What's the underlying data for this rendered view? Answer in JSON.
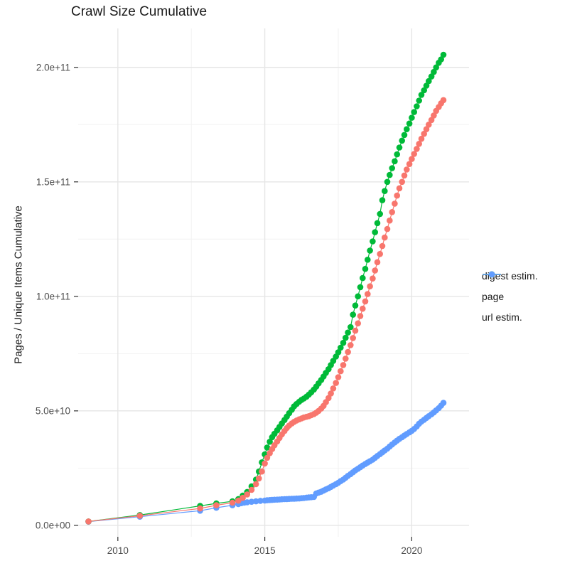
{
  "title": "Crawl Size Cumulative",
  "colors": {
    "digest": "#F8766D",
    "page": "#00BA38",
    "url": "#619CFF",
    "grid_major": "#E6E6E6",
    "grid_minor": "#F2F2F2",
    "tick_mark": "#333333",
    "axis_text": "#4D4D4D",
    "title_text": "#1A1A1A"
  },
  "legend": {
    "items": [
      {
        "label": "digest estim.",
        "color": "#F8766D"
      },
      {
        "label": "page",
        "color": "#00BA38"
      },
      {
        "label": "url estim.",
        "color": "#619CFF"
      }
    ]
  },
  "chart_data": {
    "type": "scatter",
    "title": "Crawl Size Cumulative",
    "xlabel": "",
    "ylabel": "Pages / Unique Items Cumulative",
    "grid": true,
    "legend_position": "right",
    "xlim": [
      2008.65,
      2021.95
    ],
    "y_scale": 1000000000.0,
    "ylim_scaled": [
      -5,
      217
    ],
    "x_major_ticks": [
      2010,
      2015,
      2020
    ],
    "x_tick_labels": [
      "2010",
      "2015",
      "2020"
    ],
    "x_minor_ticks": [
      2012.5,
      2017.5
    ],
    "y_major_ticks_scaled": [
      0,
      50,
      100,
      150,
      200
    ],
    "y_tick_labels": [
      "0.0e+00",
      "5.0e+10",
      "1.0e+11",
      "1.5e+11",
      "2.0e+11"
    ],
    "y_minor_ticks_scaled": [
      25,
      75,
      125,
      175
    ],
    "series": [
      {
        "name": "url estim.",
        "color": "#619CFF",
        "points": [
          [
            2009.0,
            1.6
          ],
          [
            2010.75,
            3.8
          ],
          [
            2012.8,
            6.4
          ],
          [
            2013.35,
            7.7
          ],
          [
            2013.9,
            8.8
          ],
          [
            2014.1,
            9.3
          ],
          [
            2014.2,
            9.7
          ],
          [
            2014.3,
            9.9
          ],
          [
            2014.4,
            10.1
          ],
          [
            2014.55,
            10.3
          ],
          [
            2014.7,
            10.5
          ],
          [
            2014.85,
            10.7
          ],
          [
            2015.0,
            10.85
          ],
          [
            2015.08,
            10.95
          ],
          [
            2015.17,
            11.05
          ],
          [
            2015.25,
            11.1
          ],
          [
            2015.33,
            11.2
          ],
          [
            2015.42,
            11.25
          ],
          [
            2015.5,
            11.3
          ],
          [
            2015.58,
            11.4
          ],
          [
            2015.67,
            11.45
          ],
          [
            2015.75,
            11.5
          ],
          [
            2015.83,
            11.55
          ],
          [
            2015.92,
            11.6
          ],
          [
            2016.0,
            11.65
          ],
          [
            2016.08,
            11.7
          ],
          [
            2016.17,
            11.75
          ],
          [
            2016.25,
            11.85
          ],
          [
            2016.33,
            11.95
          ],
          [
            2016.42,
            12.1
          ],
          [
            2016.5,
            12.2
          ],
          [
            2016.58,
            12.3
          ],
          [
            2016.67,
            12.4
          ],
          [
            2016.75,
            13.9
          ],
          [
            2016.83,
            14.3
          ],
          [
            2016.92,
            14.7
          ],
          [
            2017.0,
            15.2
          ],
          [
            2017.08,
            15.7
          ],
          [
            2017.17,
            16.2
          ],
          [
            2017.25,
            16.8
          ],
          [
            2017.33,
            17.4
          ],
          [
            2017.42,
            18.0
          ],
          [
            2017.5,
            18.6
          ],
          [
            2017.58,
            19.3
          ],
          [
            2017.67,
            20.0
          ],
          [
            2017.75,
            20.8
          ],
          [
            2017.83,
            21.6
          ],
          [
            2017.92,
            22.4
          ],
          [
            2018.0,
            23.2
          ],
          [
            2018.08,
            24.0
          ],
          [
            2018.17,
            24.7
          ],
          [
            2018.25,
            25.4
          ],
          [
            2018.33,
            26.1
          ],
          [
            2018.42,
            26.8
          ],
          [
            2018.5,
            27.4
          ],
          [
            2018.58,
            28.0
          ],
          [
            2018.67,
            28.7
          ],
          [
            2018.75,
            29.5
          ],
          [
            2018.83,
            30.3
          ],
          [
            2018.92,
            31.1
          ],
          [
            2019.0,
            31.9
          ],
          [
            2019.08,
            32.7
          ],
          [
            2019.17,
            33.5
          ],
          [
            2019.25,
            34.4
          ],
          [
            2019.33,
            35.3
          ],
          [
            2019.42,
            36.2
          ],
          [
            2019.5,
            37.0
          ],
          [
            2019.58,
            37.8
          ],
          [
            2019.67,
            38.5
          ],
          [
            2019.75,
            39.2
          ],
          [
            2019.83,
            39.9
          ],
          [
            2019.92,
            40.6
          ],
          [
            2020.0,
            41.3
          ],
          [
            2020.08,
            42.1
          ],
          [
            2020.17,
            43.2
          ],
          [
            2020.25,
            44.4
          ],
          [
            2020.33,
            45.3
          ],
          [
            2020.42,
            46.1
          ],
          [
            2020.5,
            46.9
          ],
          [
            2020.58,
            47.7
          ],
          [
            2020.67,
            48.5
          ],
          [
            2020.75,
            49.3
          ],
          [
            2020.83,
            50.2
          ],
          [
            2020.92,
            51.2
          ],
          [
            2021.0,
            52.3
          ],
          [
            2021.08,
            53.5
          ]
        ]
      },
      {
        "name": "page",
        "color": "#00BA38",
        "points": [
          [
            2009.0,
            1.7
          ],
          [
            2010.75,
            4.5
          ],
          [
            2012.8,
            8.5
          ],
          [
            2013.35,
            9.6
          ],
          [
            2013.9,
            10.5
          ],
          [
            2014.1,
            11.5
          ],
          [
            2014.25,
            13.0
          ],
          [
            2014.4,
            14.6
          ],
          [
            2014.55,
            17.0
          ],
          [
            2014.7,
            20.0
          ],
          [
            2014.8,
            23.5
          ],
          [
            2014.9,
            27.5
          ],
          [
            2015.0,
            31.0
          ],
          [
            2015.08,
            34.0
          ],
          [
            2015.17,
            36.5
          ],
          [
            2015.25,
            38.5
          ],
          [
            2015.33,
            40.0
          ],
          [
            2015.42,
            41.5
          ],
          [
            2015.5,
            43.0
          ],
          [
            2015.58,
            44.5
          ],
          [
            2015.67,
            46.0
          ],
          [
            2015.75,
            47.5
          ],
          [
            2015.83,
            49.0
          ],
          [
            2015.92,
            50.5
          ],
          [
            2016.0,
            52.0
          ],
          [
            2016.08,
            53.0
          ],
          [
            2016.17,
            54.0
          ],
          [
            2016.25,
            54.8
          ],
          [
            2016.33,
            55.4
          ],
          [
            2016.42,
            56.2
          ],
          [
            2016.5,
            57.1
          ],
          [
            2016.58,
            58.1
          ],
          [
            2016.67,
            59.3
          ],
          [
            2016.75,
            60.6
          ],
          [
            2016.83,
            62.0
          ],
          [
            2016.92,
            63.5
          ],
          [
            2017.0,
            65.0
          ],
          [
            2017.08,
            66.6
          ],
          [
            2017.17,
            68.2
          ],
          [
            2017.25,
            70.0
          ],
          [
            2017.33,
            71.8
          ],
          [
            2017.42,
            73.7
          ],
          [
            2017.5,
            75.6
          ],
          [
            2017.58,
            77.6
          ],
          [
            2017.67,
            79.7
          ],
          [
            2017.75,
            81.9
          ],
          [
            2017.83,
            84.2
          ],
          [
            2017.92,
            86.6
          ],
          [
            2018.0,
            92.0
          ],
          [
            2018.08,
            96.0
          ],
          [
            2018.17,
            100.0
          ],
          [
            2018.25,
            104.0
          ],
          [
            2018.33,
            108.0
          ],
          [
            2018.42,
            112.0
          ],
          [
            2018.5,
            116.0
          ],
          [
            2018.58,
            120.0
          ],
          [
            2018.67,
            124.0
          ],
          [
            2018.75,
            128.0
          ],
          [
            2018.83,
            132.0
          ],
          [
            2018.92,
            136.0
          ],
          [
            2019.0,
            142.0
          ],
          [
            2019.08,
            146.0
          ],
          [
            2019.17,
            150.0
          ],
          [
            2019.25,
            153.0
          ],
          [
            2019.33,
            156.0
          ],
          [
            2019.42,
            159.0
          ],
          [
            2019.5,
            162.0
          ],
          [
            2019.58,
            165.0
          ],
          [
            2019.67,
            168.0
          ],
          [
            2019.75,
            170.5
          ],
          [
            2019.83,
            173.0
          ],
          [
            2019.92,
            175.5
          ],
          [
            2020.0,
            178.0
          ],
          [
            2020.08,
            180.5
          ],
          [
            2020.17,
            183.0
          ],
          [
            2020.25,
            185.5
          ],
          [
            2020.33,
            188.0
          ],
          [
            2020.42,
            190.0
          ],
          [
            2020.5,
            192.0
          ],
          [
            2020.58,
            194.0
          ],
          [
            2020.67,
            196.0
          ],
          [
            2020.75,
            198.0
          ],
          [
            2020.83,
            200.0
          ],
          [
            2020.92,
            202.0
          ],
          [
            2021.0,
            203.5
          ],
          [
            2021.08,
            205.5
          ]
        ]
      },
      {
        "name": "digest estim.",
        "color": "#F8766D",
        "points": [
          [
            2009.0,
            1.7
          ],
          [
            2010.75,
            4.2
          ],
          [
            2012.8,
            7.4
          ],
          [
            2013.35,
            8.8
          ],
          [
            2013.9,
            9.9
          ],
          [
            2014.1,
            10.8
          ],
          [
            2014.25,
            12.0
          ],
          [
            2014.4,
            13.5
          ],
          [
            2014.55,
            15.5
          ],
          [
            2014.7,
            18.0
          ],
          [
            2014.8,
            20.5
          ],
          [
            2014.9,
            23.5
          ],
          [
            2015.0,
            27.0
          ],
          [
            2015.08,
            29.5
          ],
          [
            2015.17,
            31.5
          ],
          [
            2015.25,
            33.3
          ],
          [
            2015.33,
            35.0
          ],
          [
            2015.42,
            36.6
          ],
          [
            2015.5,
            38.2
          ],
          [
            2015.58,
            39.7
          ],
          [
            2015.67,
            41.2
          ],
          [
            2015.75,
            42.5
          ],
          [
            2015.83,
            43.6
          ],
          [
            2015.92,
            44.5
          ],
          [
            2016.0,
            45.2
          ],
          [
            2016.08,
            45.8
          ],
          [
            2016.17,
            46.3
          ],
          [
            2016.25,
            46.7
          ],
          [
            2016.33,
            47.1
          ],
          [
            2016.42,
            47.4
          ],
          [
            2016.5,
            47.7
          ],
          [
            2016.58,
            48.1
          ],
          [
            2016.67,
            48.6
          ],
          [
            2016.75,
            49.2
          ],
          [
            2016.83,
            50.0
          ],
          [
            2016.92,
            51.0
          ],
          [
            2017.0,
            52.2
          ],
          [
            2017.08,
            53.8
          ],
          [
            2017.17,
            55.6
          ],
          [
            2017.25,
            57.6
          ],
          [
            2017.33,
            59.8
          ],
          [
            2017.42,
            62.2
          ],
          [
            2017.5,
            64.7
          ],
          [
            2017.58,
            67.3
          ],
          [
            2017.67,
            70.0
          ],
          [
            2017.75,
            72.8
          ],
          [
            2017.83,
            75.7
          ],
          [
            2017.92,
            78.7
          ],
          [
            2018.0,
            81.8
          ],
          [
            2018.08,
            85.0
          ],
          [
            2018.17,
            88.2
          ],
          [
            2018.25,
            91.4
          ],
          [
            2018.33,
            94.6
          ],
          [
            2018.42,
            97.8
          ],
          [
            2018.5,
            101.0
          ],
          [
            2018.58,
            104.4
          ],
          [
            2018.67,
            107.8
          ],
          [
            2018.75,
            111.3
          ],
          [
            2018.83,
            114.9
          ],
          [
            2018.92,
            118.5
          ],
          [
            2019.0,
            122.0
          ],
          [
            2019.08,
            125.7
          ],
          [
            2019.17,
            129.4
          ],
          [
            2019.25,
            133.1
          ],
          [
            2019.33,
            136.8
          ],
          [
            2019.42,
            140.5
          ],
          [
            2019.5,
            144.0
          ],
          [
            2019.58,
            147.2
          ],
          [
            2019.67,
            150.0
          ],
          [
            2019.75,
            152.8
          ],
          [
            2019.83,
            155.4
          ],
          [
            2019.92,
            157.8
          ],
          [
            2020.0,
            160.0
          ],
          [
            2020.08,
            162.2
          ],
          [
            2020.17,
            164.4
          ],
          [
            2020.25,
            166.6
          ],
          [
            2020.33,
            168.8
          ],
          [
            2020.42,
            171.0
          ],
          [
            2020.5,
            173.0
          ],
          [
            2020.58,
            175.0
          ],
          [
            2020.67,
            177.0
          ],
          [
            2020.75,
            179.0
          ],
          [
            2020.83,
            181.0
          ],
          [
            2020.92,
            182.7
          ],
          [
            2021.0,
            184.3
          ],
          [
            2021.08,
            185.7
          ]
        ]
      }
    ]
  }
}
